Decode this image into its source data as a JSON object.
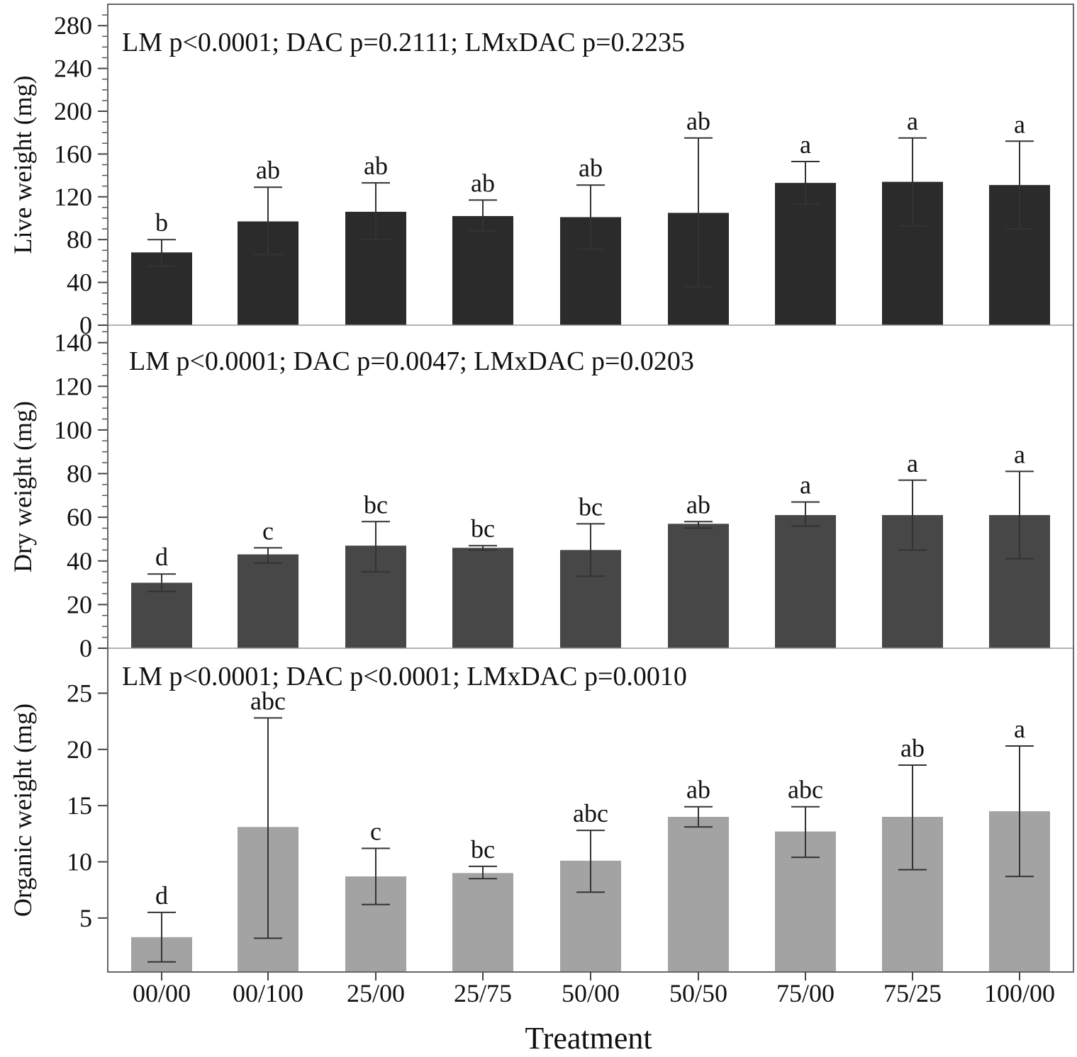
{
  "chart_data": {
    "type": "bar",
    "xlabel": "Treatment",
    "categories": [
      "00/00",
      "00/100",
      "25/00",
      "25/75",
      "50/00",
      "50/50",
      "75/00",
      "75/25",
      "100/00"
    ],
    "panels": [
      {
        "ylabel": "Live weight (mg)",
        "stats": "LM p<0.0001; DAC p=0.2111; LMxDAC p=0.2235",
        "ylim": [
          0,
          300
        ],
        "yticks": [
          0,
          40,
          80,
          120,
          160,
          200,
          240,
          280
        ],
        "minor_step": 10,
        "bar_color": "#2b2b2b",
        "values": [
          68,
          97,
          106,
          102,
          101,
          105,
          133,
          134,
          131
        ],
        "err_low": [
          55,
          66,
          80,
          88,
          71,
          36,
          113,
          93,
          90
        ],
        "err_high": [
          80,
          129,
          133,
          117,
          131,
          175,
          153,
          175,
          172
        ],
        "letters": [
          "b",
          "ab",
          "ab",
          "ab",
          "ab",
          "ab",
          "a",
          "a",
          "a"
        ]
      },
      {
        "ylabel": "Dry weight (mg)",
        "stats": "LM p<0.0001; DAC p=0.0047; LMxDAC p=0.0203",
        "ylim": [
          0,
          148
        ],
        "yticks": [
          0,
          20,
          40,
          60,
          80,
          100,
          120,
          140
        ],
        "minor_step": 5,
        "bar_color": "#474747",
        "values": [
          30,
          43,
          47,
          46,
          45,
          57,
          61,
          61,
          61
        ],
        "err_low": [
          26,
          39,
          35,
          45,
          33,
          55,
          56,
          45,
          41
        ],
        "err_high": [
          34,
          46,
          58,
          47,
          57,
          58,
          67,
          77,
          81
        ],
        "letters": [
          "d",
          "c",
          "bc",
          "bc",
          "bc",
          "ab",
          "a",
          "a",
          "a"
        ]
      },
      {
        "ylabel": "Organic weight  (mg)",
        "stats": "LM p<0.0001; DAC p<0.0001; LMxDAC p=0.0010",
        "ylim": [
          0.2,
          29
        ],
        "yticks": [
          5,
          10,
          15,
          20,
          25
        ],
        "minor_step": 0,
        "bar_color": "#a3a3a3",
        "values": [
          3.3,
          13.1,
          8.7,
          9.0,
          10.1,
          14.0,
          12.7,
          14.0,
          14.5
        ],
        "err_low": [
          1.1,
          3.2,
          6.2,
          8.5,
          7.3,
          13.1,
          10.4,
          9.3,
          8.7
        ],
        "err_high": [
          5.5,
          22.8,
          11.2,
          9.6,
          12.8,
          14.9,
          14.9,
          18.6,
          20.3
        ],
        "letters": [
          "d",
          "abc",
          "c",
          "bc",
          "abc",
          "ab",
          "abc",
          "ab",
          "a"
        ]
      }
    ]
  }
}
